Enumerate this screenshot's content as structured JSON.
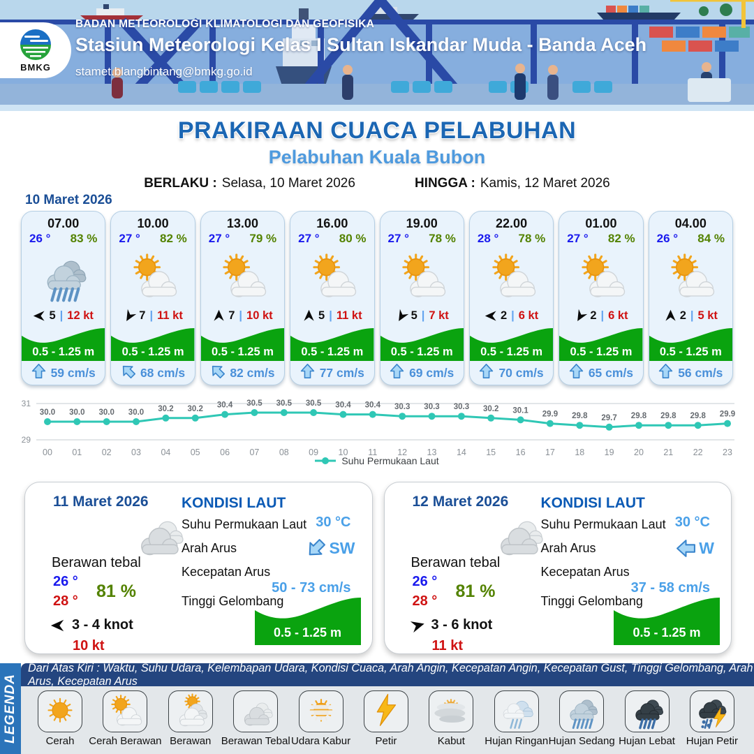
{
  "header": {
    "agency": "BADAN METEOROLOGI KLIMATOLOGI DAN GEOFISIKA",
    "station": "Stasiun Meteorologi Kelas I Sultan Iskandar Muda - Banda Aceh",
    "email": "stamet.blangbintang@bmkg.go.id",
    "logo_text": "BMKG"
  },
  "title": {
    "main": "PRAKIRAAN CUACA PELABUHAN",
    "subtitle": "Pelabuhan Kuala Bubon",
    "valid_from_label": "BERLAKU :",
    "valid_from": "Selasa, 10 Maret 2026",
    "valid_to_label": "HINGGA :",
    "valid_to": "Kamis, 12 Maret 2026"
  },
  "forecast_date": "10 Maret 2026",
  "colors": {
    "accent_blue": "#1b66b3",
    "light_blue": "#4e9ade",
    "temp_blue": "#1a1aee",
    "humidity_green": "#538200",
    "gust_red": "#cf1212",
    "wave_green": "#0aa30f",
    "current_blue": "#4a90d9",
    "chart_teal": "#2fc7b5"
  },
  "hourly": [
    {
      "time": "07.00",
      "temp": "26 °",
      "humidity": "83 %",
      "icon": "hujan-sedang",
      "wind": "5",
      "gust": "12 kt",
      "wind_deg": 180,
      "wave": "0.5 - 1.25 m",
      "current": "59 cm/s",
      "current_deg": 0
    },
    {
      "time": "10.00",
      "temp": "27 °",
      "humidity": "82 %",
      "icon": "cerah-berawan",
      "wind": "7",
      "gust": "11 kt",
      "wind_deg": 120,
      "wave": "0.5 - 1.25 m",
      "current": "68 cm/s",
      "current_deg": -45
    },
    {
      "time": "13.00",
      "temp": "27 °",
      "humidity": "79 %",
      "icon": "cerah-berawan",
      "wind": "7",
      "gust": "10 kt",
      "wind_deg": 270,
      "wave": "0.5 - 1.25 m",
      "current": "82 cm/s",
      "current_deg": -45
    },
    {
      "time": "16.00",
      "temp": "27 °",
      "humidity": "80 %",
      "icon": "cerah-berawan",
      "wind": "5",
      "gust": "11 kt",
      "wind_deg": 270,
      "wave": "0.5 - 1.25 m",
      "current": "77 cm/s",
      "current_deg": 0
    },
    {
      "time": "19.00",
      "temp": "27 °",
      "humidity": "78 %",
      "icon": "cerah-berawan",
      "wind": "5",
      "gust": "7 kt",
      "wind_deg": 120,
      "wave": "0.5 - 1.25 m",
      "current": "69 cm/s",
      "current_deg": 0
    },
    {
      "time": "22.00",
      "temp": "28 °",
      "humidity": "78 %",
      "icon": "cerah-berawan",
      "wind": "2",
      "gust": "6 kt",
      "wind_deg": 180,
      "wave": "0.5 - 1.25 m",
      "current": "70 cm/s",
      "current_deg": 0
    },
    {
      "time": "01.00",
      "temp": "27 °",
      "humidity": "82 %",
      "icon": "cerah-berawan",
      "wind": "2",
      "gust": "6 kt",
      "wind_deg": 120,
      "wave": "0.5 - 1.25 m",
      "current": "65 cm/s",
      "current_deg": 0
    },
    {
      "time": "04.00",
      "temp": "26 °",
      "humidity": "84 %",
      "icon": "cerah-berawan",
      "wind": "2",
      "gust": "5 kt",
      "wind_deg": 270,
      "wave": "0.5 - 1.25 m",
      "current": "56 cm/s",
      "current_deg": 0
    }
  ],
  "chart_data": {
    "type": "line",
    "x": [
      "00",
      "01",
      "02",
      "03",
      "04",
      "05",
      "06",
      "07",
      "08",
      "09",
      "10",
      "11",
      "12",
      "13",
      "14",
      "15",
      "16",
      "17",
      "18",
      "19",
      "20",
      "21",
      "22",
      "23"
    ],
    "series": [
      {
        "name": "Suhu Permukaan Laut",
        "values": [
          30.0,
          30.0,
          30.0,
          30.0,
          30.2,
          30.2,
          30.4,
          30.5,
          30.5,
          30.5,
          30.4,
          30.4,
          30.3,
          30.3,
          30.3,
          30.2,
          30.1,
          29.9,
          29.8,
          29.7,
          29.8,
          29.8,
          29.8,
          29.9
        ]
      }
    ],
    "ylim": [
      29,
      31
    ],
    "yticks": [
      29,
      31
    ],
    "grid": true,
    "legend_position": "bottom",
    "line_color": "#2fc7b5"
  },
  "daily": [
    {
      "date": "11 Maret 2026",
      "icon": "berawan-tebal",
      "condition": "Berawan tebal",
      "temp_min": "26 °",
      "temp_max": "28 °",
      "humidity": "81 %",
      "wind_range": "3  - 4 knot",
      "gust": "10 kt",
      "wind_deg": 180,
      "sea_heading": "KONDISI LAUT",
      "sst_label": "Suhu Permukaan Laut",
      "sst": "30 °C",
      "current_dir_label": "Arah Arus",
      "current_dir": "SW",
      "current_dir_deg": 225,
      "current_speed_label": "Kecepatan Arus",
      "current_speed": "50  - 73 cm/s",
      "wave_label": "Tinggi Gelombang",
      "wave": "0.5 - 1.25 m"
    },
    {
      "date": "12 Maret 2026",
      "icon": "berawan-tebal",
      "condition": "Berawan tebal",
      "temp_min": "26 °",
      "temp_max": "28 °",
      "humidity": "81 %",
      "wind_range": "3  - 6 knot",
      "gust": "11 kt",
      "wind_deg": -15,
      "sea_heading": "KONDISI LAUT",
      "sst_label": "Suhu Permukaan Laut",
      "sst": "30 °C",
      "current_dir_label": "Arah Arus",
      "current_dir": "W",
      "current_dir_deg": 270,
      "current_speed_label": "Kecepatan Arus",
      "current_speed": "37  - 58 cm/s",
      "wave_label": "Tinggi Gelombang",
      "wave": "0.5 - 1.25 m"
    }
  ],
  "legend": {
    "bar_label": "LEGENDA",
    "note": "Dari Atas Kiri : Waktu, Suhu Udara, Kelembapan Udara, Kondisi Cuaca, Arah Angin, Kecepatan Angin, Kecepatan Gust, Tinggi Gelombang, Arah Arus, Kecepatan Arus",
    "items": [
      {
        "label": "Cerah",
        "icon": "cerah"
      },
      {
        "label": "Cerah Berawan",
        "icon": "cerah-berawan"
      },
      {
        "label": "Berawan",
        "icon": "berawan"
      },
      {
        "label": "Berawan Tebal",
        "icon": "berawan-tebal"
      },
      {
        "label": "Udara Kabur",
        "icon": "udara-kabur"
      },
      {
        "label": "Petir",
        "icon": "petir"
      },
      {
        "label": "Kabut",
        "icon": "kabut"
      },
      {
        "label": "Hujan Ringan",
        "icon": "hujan-ringan"
      },
      {
        "label": "Hujan Sedang",
        "icon": "hujan-sedang"
      },
      {
        "label": "Hujan Lebat",
        "icon": "hujan-lebat"
      },
      {
        "label": "Hujan Petir",
        "icon": "hujan-petir"
      }
    ]
  }
}
